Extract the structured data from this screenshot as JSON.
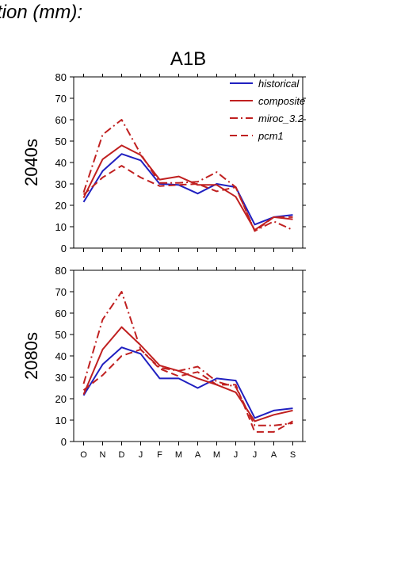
{
  "page": {
    "title": "tion (mm):"
  },
  "chart_data": [
    {
      "type": "line",
      "title": "A1B",
      "ylabel": "2040s",
      "xlabel": "",
      "categories": [
        "O",
        "N",
        "D",
        "J",
        "F",
        "M",
        "A",
        "M",
        "J",
        "J",
        "A",
        "S"
      ],
      "ylim": [
        0,
        80
      ],
      "yticks": [
        0,
        10,
        20,
        30,
        40,
        50,
        60,
        70,
        80
      ],
      "show_x_tick_labels": false,
      "legend_position": "top-right",
      "series": [
        {
          "name": "historical",
          "color": "#2020c0",
          "dash": "solid",
          "values": [
            21.5,
            36,
            44,
            41,
            30,
            29.5,
            25.5,
            30,
            28.5,
            11,
            14.5,
            15.5
          ]
        },
        {
          "name": "composite",
          "color": "#c02020",
          "dash": "solid",
          "values": [
            23.5,
            41.5,
            48,
            43.5,
            32,
            33.5,
            29.5,
            29.5,
            24,
            8.5,
            14.5,
            13.5
          ]
        },
        {
          "name": "miroc_3.2",
          "color": "#c02020",
          "dash": "dashdot",
          "values": [
            26,
            53,
            60,
            44,
            30.5,
            30.5,
            31,
            35.5,
            28.5,
            8,
            12.5,
            8.5
          ]
        },
        {
          "name": "pcm1",
          "color": "#c02020",
          "dash": "dash",
          "values": [
            25,
            33,
            38.5,
            33,
            29,
            29.5,
            30,
            26.5,
            28.5,
            8,
            14.5,
            14.5
          ]
        }
      ]
    },
    {
      "type": "line",
      "title": "",
      "ylabel": "2080s",
      "xlabel": "",
      "categories": [
        "O",
        "N",
        "D",
        "J",
        "F",
        "M",
        "A",
        "M",
        "J",
        "J",
        "A",
        "S"
      ],
      "ylim": [
        0,
        80
      ],
      "yticks": [
        0,
        10,
        20,
        30,
        40,
        50,
        60,
        70,
        80
      ],
      "show_x_tick_labels": true,
      "series": [
        {
          "color": "#2020c0",
          "dash": "solid",
          "values": [
            21.5,
            36,
            44,
            41,
            29.5,
            29.5,
            25,
            29.5,
            28.5,
            11,
            14.5,
            15.5
          ]
        },
        {
          "color": "#c02020",
          "dash": "solid",
          "values": [
            22,
            43,
            53.5,
            45,
            35.5,
            33,
            29.5,
            26.5,
            23,
            9.5,
            12.5,
            14.5
          ]
        },
        {
          "color": "#c02020",
          "dash": "dashdot",
          "values": [
            27,
            57,
            70,
            43,
            34.5,
            33,
            35,
            28,
            25.5,
            7.5,
            7.5,
            8.5
          ]
        },
        {
          "color": "#c02020",
          "dash": "dash",
          "values": [
            24,
            31,
            40,
            43,
            34,
            30.5,
            32.5,
            26.5,
            26.5,
            4.5,
            4.5,
            9.5
          ]
        }
      ]
    }
  ]
}
